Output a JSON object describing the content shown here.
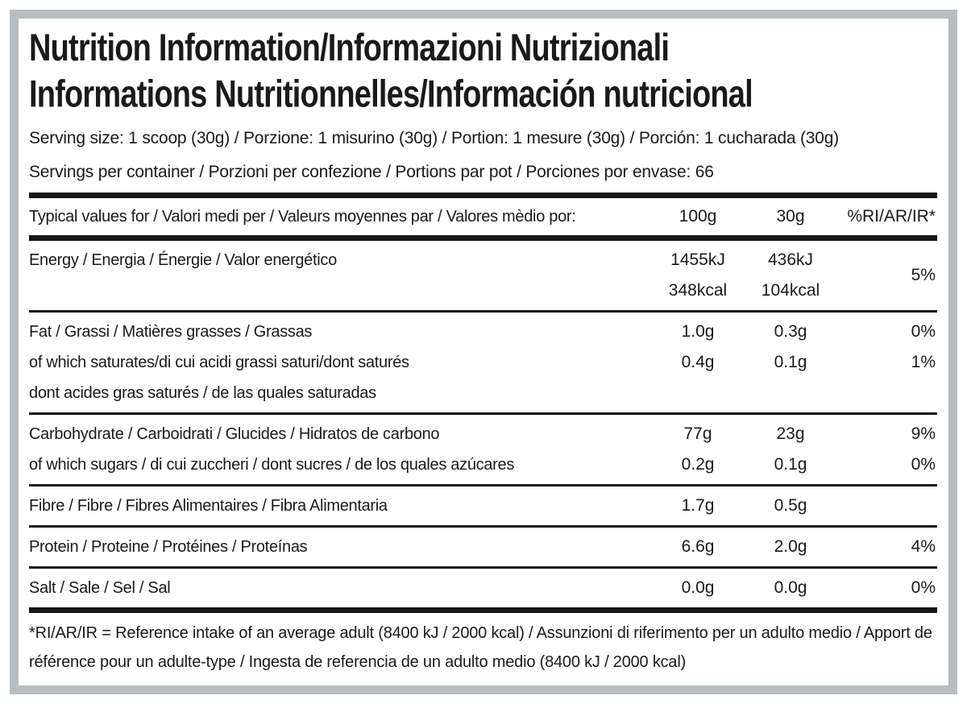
{
  "title": {
    "line1": "Nutrition Information/Informazioni Nutrizionali",
    "line2": "Informations Nutritionnelles/Información nutricional"
  },
  "serving": {
    "size_line": "Serving size: 1 scoop (30g) / Porzione: 1 misurino (30g) / Portion: 1 mesure (30g) / Porción: 1 cucharada (30g)",
    "per_container_line": "Servings per container / Porzioni per confezione / Portions par pot / Porciones por envase: 66"
  },
  "table": {
    "header": {
      "label": "Typical values for / Valori medi per / Valeurs moyennes par / Valores mèdio por:",
      "col_100g": "100g",
      "col_30g": "30g",
      "col_ri": "%RI/AR/IR*"
    },
    "rows": [
      {
        "id": "energy",
        "labels": [
          "Energy / Energia / Énergie / Valor energético"
        ],
        "v100": [
          "1455kJ",
          "348kcal"
        ],
        "v30": [
          "436kJ",
          "104kcal"
        ],
        "ri": [
          "5%"
        ],
        "ri_center": true
      },
      {
        "id": "fat",
        "labels": [
          "Fat / Grassi / Matières grasses / Grassas",
          "of which saturates/di cui acidi grassi saturi/dont saturés",
          "dont acides gras saturés / de las quales saturadas"
        ],
        "v100": [
          "1.0g",
          "0.4g"
        ],
        "v30": [
          "0.3g",
          "0.1g"
        ],
        "ri": [
          "0%",
          "1%"
        ],
        "ri_center": false
      },
      {
        "id": "carbohydrate",
        "labels": [
          "Carbohydrate / Carboidrati / Glucides / Hidratos de carbono",
          "of which sugars / di cui zuccheri / dont sucres / de los quales azúcares"
        ],
        "v100": [
          "77g",
          "0.2g"
        ],
        "v30": [
          "23g",
          "0.1g"
        ],
        "ri": [
          "9%",
          "0%"
        ],
        "ri_center": false
      },
      {
        "id": "fibre",
        "labels": [
          "Fibre / Fibre / Fibres Alimentaires / Fibra Alimentaria"
        ],
        "v100": [
          "1.7g"
        ],
        "v30": [
          "0.5g"
        ],
        "ri": [],
        "ri_center": false
      },
      {
        "id": "protein",
        "labels": [
          "Protein / Proteine / Protéines / Proteínas"
        ],
        "v100": [
          "6.6g"
        ],
        "v30": [
          "2.0g"
        ],
        "ri": [
          "4%"
        ],
        "ri_center": false
      },
      {
        "id": "salt",
        "labels": [
          "Salt / Sale / Sel / Sal"
        ],
        "v100": [
          "0.0g"
        ],
        "v30": [
          "0.0g"
        ],
        "ri": [
          "0%"
        ],
        "ri_center": false
      }
    ]
  },
  "footnote": "*RI/AR/IR = Reference intake of an average adult (8400 kJ / 2000 kcal)  / Assunzioni di riferimento per un adulto medio / Apport de référence pour un adulte-type / Ingesta de referencia de un adulto medio (8400 kJ / 2000 kcal)",
  "colors": {
    "text": "#1a1a1a",
    "rule": "#161616",
    "frame_border": "#b7bcbf",
    "background": "#ffffff"
  }
}
